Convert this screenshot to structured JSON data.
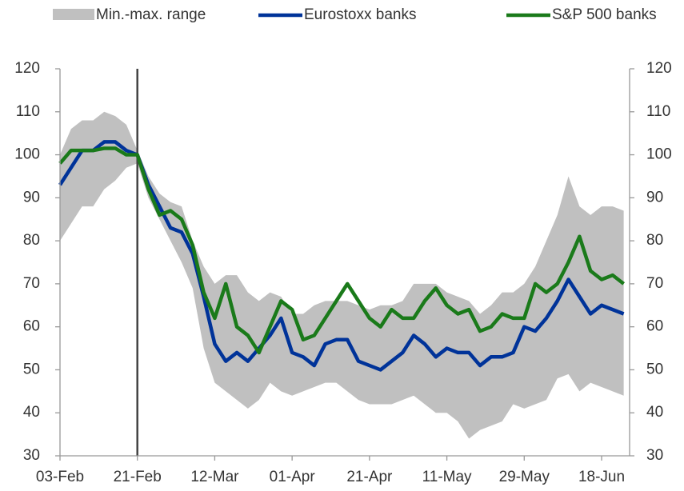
{
  "chart_data": {
    "type": "line",
    "categories": [
      "03-Feb",
      null,
      null,
      null,
      null,
      null,
      null,
      "21-Feb",
      null,
      null,
      null,
      null,
      null,
      null,
      "12-Mar",
      null,
      null,
      null,
      null,
      null,
      null,
      "01-Apr",
      null,
      null,
      null,
      null,
      null,
      null,
      "21-Apr",
      null,
      null,
      null,
      null,
      null,
      null,
      "11-May",
      null,
      null,
      null,
      null,
      null,
      null,
      "29-May",
      null,
      null,
      null,
      null,
      null,
      null,
      "18-Jun",
      null,
      null
    ],
    "event_line": "21-Feb",
    "band": {
      "name": "Min.-max. range",
      "color": "#c0c0c0",
      "max": [
        100,
        106,
        108,
        108,
        110,
        109,
        107,
        101,
        95,
        91,
        89,
        88,
        80,
        74,
        70,
        72,
        72,
        68,
        66,
        68,
        67,
        63,
        63,
        65,
        66,
        66,
        66,
        65,
        64,
        65,
        65,
        66,
        70,
        70,
        70,
        68,
        67,
        66,
        63,
        65,
        68,
        68,
        70,
        74,
        80,
        86,
        95,
        88,
        86,
        88,
        88,
        87
      ],
      "min": [
        80,
        84,
        88,
        88,
        92,
        94,
        97,
        98,
        90,
        85,
        80,
        75,
        69,
        55,
        47,
        45,
        43,
        41,
        43,
        47,
        45,
        44,
        45,
        46,
        47,
        47,
        45,
        43,
        42,
        42,
        42,
        43,
        44,
        42,
        40,
        40,
        38,
        34,
        36,
        37,
        38,
        42,
        41,
        42,
        43,
        48,
        49,
        45,
        47,
        46,
        45,
        44
      ]
    },
    "series": [
      {
        "name": "Eurostoxx banks",
        "color": "#003399",
        "values": [
          93,
          97,
          101,
          101,
          103,
          103,
          101,
          100,
          93,
          88,
          83,
          82,
          77,
          67,
          56,
          52,
          54,
          52,
          55,
          58,
          62,
          54,
          53,
          51,
          56,
          57,
          57,
          52,
          51,
          50,
          52,
          54,
          58,
          56,
          53,
          55,
          54,
          54,
          51,
          53,
          53,
          54,
          60,
          59,
          62,
          66,
          71,
          67,
          63,
          65,
          64,
          63
        ]
      },
      {
        "name": "S&P 500 banks",
        "color": "#1a7a1a",
        "values": [
          98,
          101,
          101,
          101,
          101.5,
          101.5,
          100,
          100,
          92,
          86,
          87,
          85,
          79,
          68,
          62,
          70,
          60,
          58,
          54,
          60,
          66,
          64,
          57,
          58,
          62,
          66,
          70,
          66,
          62,
          60,
          64,
          62,
          62,
          66,
          69,
          65,
          63,
          64,
          59,
          60,
          63,
          62,
          62,
          70,
          68,
          70,
          75,
          81,
          73,
          71,
          72,
          70
        ]
      }
    ],
    "ylim": [
      30,
      120
    ],
    "yticks": [
      30,
      40,
      50,
      60,
      70,
      80,
      90,
      100,
      110,
      120
    ],
    "y2lim": [
      30,
      120
    ],
    "y2ticks": [
      30,
      40,
      50,
      60,
      70,
      80,
      90,
      100,
      110,
      120
    ],
    "grid": false,
    "legend": "top"
  }
}
